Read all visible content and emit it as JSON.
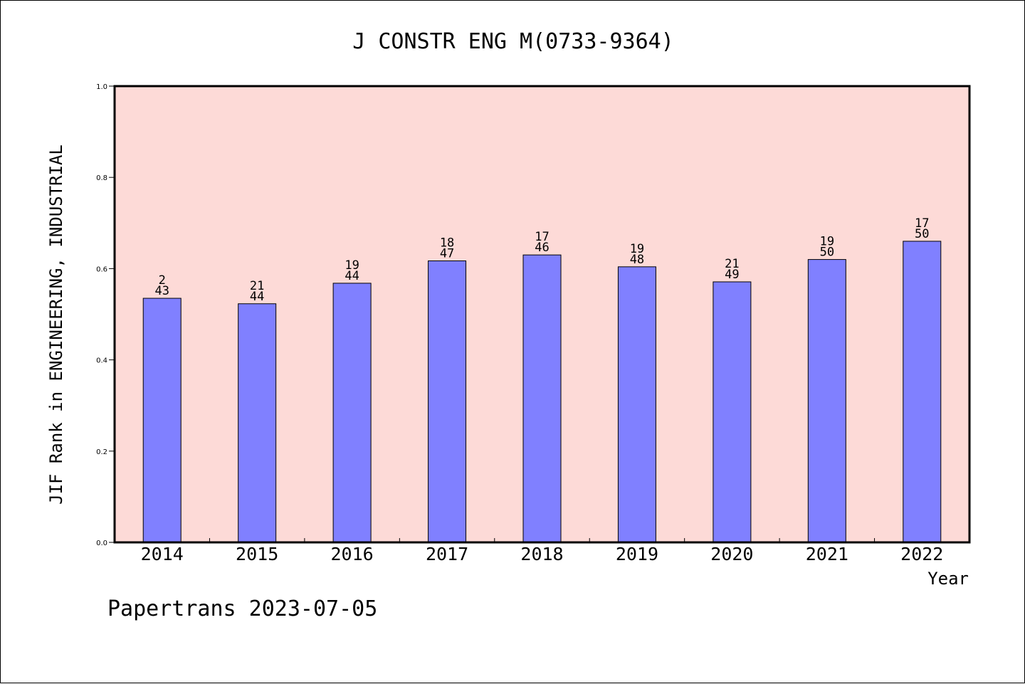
{
  "chart_data": {
    "type": "bar",
    "title": "J CONSTR ENG M(0733-9364)",
    "xlabel": "Year",
    "ylabel": "JIF Rank in ENGINEERING, INDUSTRIAL",
    "categories": [
      "2014",
      "2015",
      "2016",
      "2017",
      "2018",
      "2019",
      "2020",
      "2021",
      "2022"
    ],
    "values": [
      0.535,
      0.523,
      0.568,
      0.617,
      0.63,
      0.604,
      0.571,
      0.62,
      0.66
    ],
    "rank_labels": [
      [
        "2",
        "43"
      ],
      [
        "21",
        "44"
      ],
      [
        "19",
        "44"
      ],
      [
        "18",
        "47"
      ],
      [
        "17",
        "46"
      ],
      [
        "19",
        "48"
      ],
      [
        "21",
        "49"
      ],
      [
        "19",
        "50"
      ],
      [
        "17",
        "50"
      ]
    ],
    "ylim": [
      0,
      1.0
    ],
    "yticks": [
      "0.0",
      "0.2",
      "0.4",
      "0.6",
      "0.8",
      "1.0"
    ],
    "grid": false,
    "colors": {
      "bar": "#8080ff",
      "plot_background": "#fddad7"
    },
    "footer": "Papertrans 2023-07-05"
  }
}
